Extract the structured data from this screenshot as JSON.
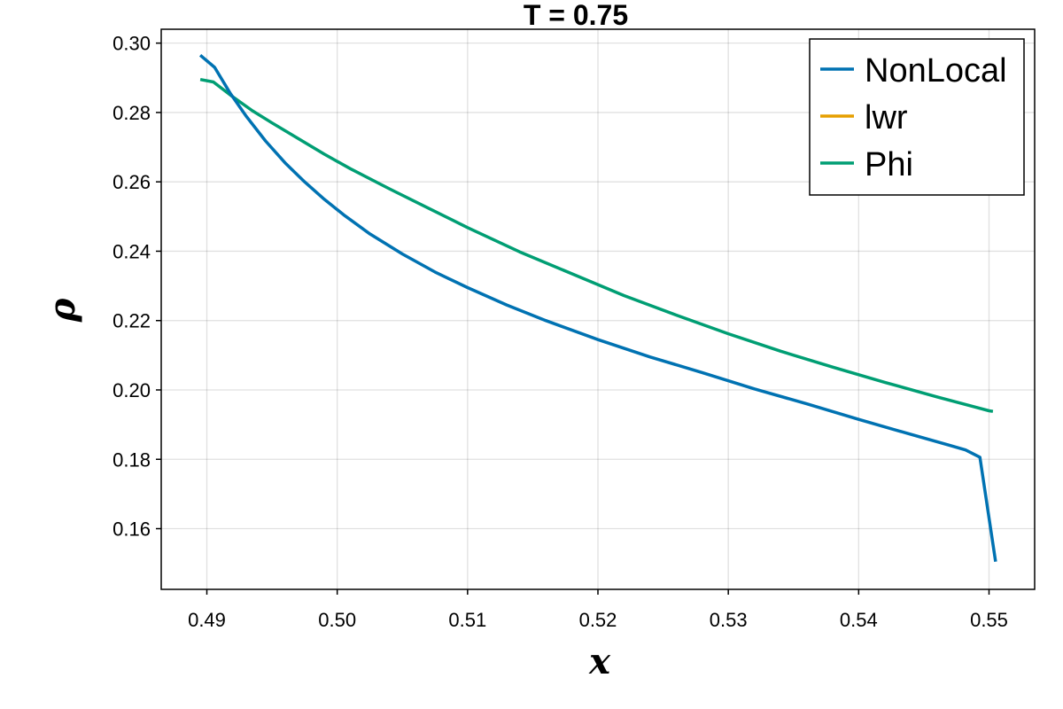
{
  "chart_data": {
    "type": "line",
    "title": "T = 0.75",
    "xlabel": "x",
    "ylabel": "ρ",
    "xlim": [
      0.4865,
      0.5535
    ],
    "ylim": [
      0.1425,
      0.304
    ],
    "xticks": [
      0.49,
      0.5,
      0.51,
      0.52,
      0.53,
      0.54,
      0.55
    ],
    "xtick_labels": [
      "0.49",
      "0.50",
      "0.51",
      "0.52",
      "0.53",
      "0.54",
      "0.55"
    ],
    "yticks": [
      0.16,
      0.18,
      0.2,
      0.22,
      0.24,
      0.26,
      0.28,
      0.3
    ],
    "ytick_labels": [
      "0.16",
      "0.18",
      "0.20",
      "0.22",
      "0.24",
      "0.26",
      "0.28",
      "0.30"
    ],
    "grid": true,
    "legend_position": "top-right",
    "series": [
      {
        "name": "NonLocal",
        "color": "#0072b2",
        "x": [
          0.4895,
          0.4906,
          0.4918,
          0.493,
          0.4945,
          0.496,
          0.4975,
          0.499,
          0.5005,
          0.5025,
          0.505,
          0.5075,
          0.51,
          0.513,
          0.516,
          0.52,
          0.524,
          0.528,
          0.532,
          0.536,
          0.54,
          0.544,
          0.547,
          0.5482,
          0.5493,
          0.5505
        ],
        "y": [
          0.2965,
          0.293,
          0.2855,
          0.279,
          0.2718,
          0.2655,
          0.26,
          0.255,
          0.2505,
          0.245,
          0.2392,
          0.234,
          0.2295,
          0.2245,
          0.22,
          0.2145,
          0.2095,
          0.205,
          0.2003,
          0.196,
          0.1915,
          0.1872,
          0.184,
          0.1827,
          0.1806,
          0.1505
        ]
      },
      {
        "name": "lwr",
        "color": "#e69f00",
        "x": [],
        "y": []
      },
      {
        "name": "Phi",
        "color": "#009e73",
        "x": [
          0.4895,
          0.4905,
          0.492,
          0.4935,
          0.495,
          0.497,
          0.499,
          0.501,
          0.504,
          0.507,
          0.51,
          0.514,
          0.518,
          0.522,
          0.526,
          0.53,
          0.534,
          0.538,
          0.542,
          0.546,
          0.549,
          0.55,
          0.5503
        ],
        "y": [
          0.2895,
          0.2888,
          0.2845,
          0.2805,
          0.277,
          0.2725,
          0.268,
          0.2638,
          0.258,
          0.2524,
          0.2468,
          0.2398,
          0.2335,
          0.2272,
          0.2216,
          0.2162,
          0.2112,
          0.2066,
          0.2022,
          0.198,
          0.195,
          0.194,
          0.1938
        ]
      }
    ]
  }
}
